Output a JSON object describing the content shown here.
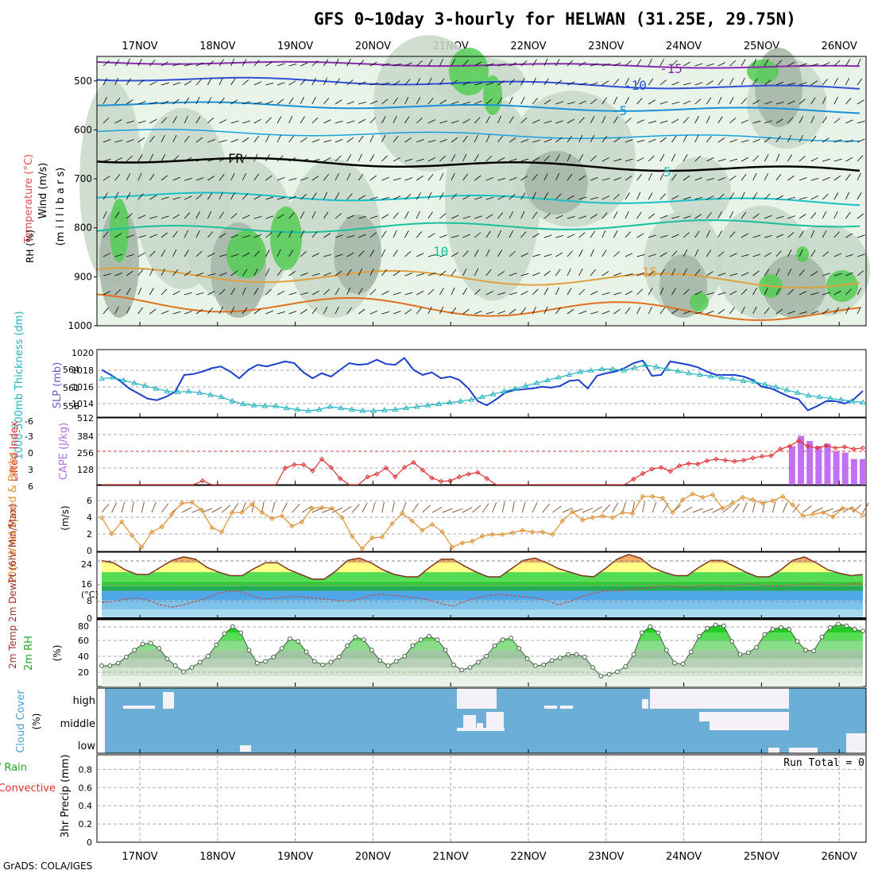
{
  "header": {
    "title": "GFS 0~10day 3-hourly for HELWAN (31.25E, 29.75N)",
    "footer": "GrADS: COLA/IGES"
  },
  "dates": [
    "17NOV",
    "18NOV",
    "19NOV",
    "20NOV",
    "21NOV",
    "22NOV",
    "23NOV",
    "24NOV",
    "25NOV",
    "26NOV"
  ],
  "colors": {
    "rh_light": "#e8f4e8",
    "rh_mid": "#c8d8c8",
    "rh_dark": "#a8b8a8",
    "rh_green": "#55cc55",
    "wind_barb": "#000000",
    "slp": "#1a3fcc",
    "thickness": "#22b3c0",
    "cape": "#c070f0",
    "lifted": "#e03030",
    "wind10": "#e09030",
    "barb10": "#8b5a3c",
    "cloud": "#6baed6",
    "cloud_blank": "#f4f1f8"
  },
  "panels": {
    "upper": {
      "ylabel_wind": "Wind (m/s)",
      "ylabel_temp": "Temperature (°C)",
      "ylabel_rh": "RH (%)",
      "ylabel_mb": "(m i l l i b a r s)",
      "yticks": [
        "500",
        "600",
        "700",
        "800",
        "900",
        "1000"
      ],
      "contour_labels": [
        {
          "text": "-15"
        },
        {
          "text": "-10"
        },
        {
          "text": "-5"
        },
        {
          "text": "FR"
        },
        {
          "text": "5"
        },
        {
          "text": "10"
        },
        {
          "text": "15"
        }
      ]
    },
    "slp": {
      "ylabel_left": "1000-500mb Thickness (dm)",
      "ylabel_right": "SLP (mb)",
      "ticks_left": [
        "564",
        "561",
        "558"
      ],
      "ticks_right": [
        "1020",
        "1018",
        "1016",
        "1014",
        "512"
      ]
    },
    "cape": {
      "ylabel_left": "Lifted Index",
      "ylabel_right": "CAPE (J/kg)",
      "ticks_left": [
        "-6",
        "-3",
        "0",
        "3",
        "6"
      ],
      "ticks_right": [
        "384",
        "256",
        "128"
      ]
    },
    "wind10": {
      "ylabel": "10m Wind Speed & Barbs",
      "unit": "(m/s)",
      "ticks": [
        "6",
        "4",
        "2",
        "0"
      ]
    },
    "temp2m": {
      "ylabel": "2m Temp 2m DewPt (6hr Min/Max)",
      "unit": "(°C)",
      "ticks": [
        "24",
        "16",
        "8",
        "0"
      ]
    },
    "rh2m": {
      "ylabel": "2m RH",
      "unit": "(%)",
      "ticks": [
        "80",
        "60",
        "40",
        "20"
      ]
    },
    "cloud": {
      "ylabel": "Cloud Cover",
      "unit": "(%)",
      "levels": [
        "high",
        "middle",
        "low"
      ]
    },
    "precip": {
      "ylabel_total": "Total / Rain",
      "ylabel_conv": "Convective",
      "ylabel": "3hr Precip (mm)",
      "ticks": [
        "0.8",
        "0.6",
        "0.4",
        "0.2",
        "0"
      ],
      "run_total": "Run Total = 0"
    }
  },
  "chart_data": {
    "type": "line",
    "x_dates": [
      "17NOV",
      "18NOV",
      "19NOV",
      "20NOV",
      "21NOV",
      "22NOV",
      "23NOV",
      "24NOV",
      "25NOV",
      "26NOV"
    ],
    "slp": [
      1018.2,
      1017.6,
      1016.9,
      1016.0,
      1015.4,
      1014.8,
      1014.6,
      1015.0,
      1015.6,
      1017.6,
      1017.7,
      1018.0,
      1018.4,
      1018.6,
      1018.0,
      1017.2,
      1018.2,
      1018.8,
      1018.6,
      1018.9,
      1019.2,
      1019.0,
      1017.9,
      1017.2,
      1017.8,
      1017.4,
      1018.2,
      1019.0,
      1018.8,
      1018.9,
      1019.4,
      1018.9,
      1018.8,
      1019.6,
      1018.2,
      1017.6,
      1017.9,
      1017.2,
      1017.4,
      1017.0,
      1016.0,
      1014.5,
      1014.0,
      1014.7,
      1015.5,
      1015.8,
      1015.9,
      1016.0,
      1016.2,
      1016.1,
      1016.3,
      1016.9,
      1017.0,
      1016.0,
      1017.5,
      1017.8,
      1018.0,
      1018.4,
      1019.0,
      1019.3,
      1017.5,
      1017.6,
      1019.2,
      1019.0,
      1018.8,
      1018.5,
      1018.0,
      1017.6,
      1017.6,
      1017.6,
      1017.4,
      1017.0,
      1016.2,
      1016.0,
      1015.5,
      1015.0,
      1014.7,
      1013.4,
      1013.9,
      1014.5,
      1014.5,
      1014.2,
      1014.7,
      1015.7
    ],
    "thickness": [
      561.8,
      562.0,
      561.6,
      561.2,
      560.8,
      560.4,
      560.0,
      559.9,
      560.0,
      559.8,
      559.5,
      559.2,
      558.6,
      558.2,
      558.0,
      557.9,
      557.9,
      557.6,
      557.4,
      557.2,
      557.4,
      557.8,
      557.6,
      557.4,
      557.2,
      557.2,
      557.3,
      557.4,
      557.6,
      557.8,
      558.0,
      558.2,
      558.4,
      558.6,
      558.8,
      559.2,
      559.6,
      560.0,
      560.4,
      560.8,
      561.2,
      561.6,
      562.0,
      562.4,
      562.8,
      563.0,
      563.2,
      563.2,
      563.0,
      563.4,
      563.8,
      563.5,
      563.2,
      562.9,
      562.6,
      562.4,
      562.2,
      562.0,
      561.8,
      561.5,
      561.4,
      561.0,
      560.6,
      560.2,
      559.8,
      559.4,
      559.2,
      559.0,
      558.8,
      558.6,
      558.4
    ],
    "lifted_index": [
      6,
      6,
      6,
      6,
      6,
      6,
      6,
      6,
      6,
      6,
      6,
      5.3,
      6,
      6,
      6,
      6,
      6,
      6,
      6,
      6,
      3.0,
      2.4,
      2.4,
      3.5,
      1.4,
      2.9,
      4.9,
      6,
      6,
      4.6,
      4.1,
      3.0,
      4.6,
      2.9,
      2.0,
      3.4,
      4.8,
      5.4,
      5.3,
      4.6,
      4.1,
      3.8,
      4.9,
      6,
      6,
      6,
      6,
      6,
      6,
      6,
      6,
      6,
      6,
      6,
      6,
      6,
      6,
      6,
      5.0,
      4.0,
      3.2,
      2.9,
      3.6,
      2.6,
      2.2,
      2.3,
      1.7,
      1.4,
      1.6,
      1.8,
      1.6,
      1.2,
      0.9,
      0.8,
      -0.4,
      -0.9,
      -1.9,
      -0.9,
      -0.6,
      -1.0,
      -0.6,
      -0.8,
      -0.4,
      -0.6
    ],
    "cape": [
      0,
      0,
      0,
      0,
      0,
      0,
      0,
      0,
      0,
      0,
      0,
      0,
      0,
      0,
      0,
      0,
      0,
      0,
      0,
      0,
      0,
      0,
      0,
      0,
      0,
      0,
      0,
      0,
      0,
      0,
      0,
      0,
      0,
      0,
      0,
      0,
      0,
      0,
      0,
      0,
      0,
      0,
      0,
      0,
      0,
      0,
      0,
      0,
      0,
      0,
      0,
      0,
      0,
      0,
      0,
      0,
      0,
      0,
      0,
      0,
      0,
      0,
      0,
      0,
      0,
      0,
      0,
      0,
      0,
      0,
      0,
      0,
      0,
      0,
      0,
      0,
      0,
      0,
      300,
      380,
      340,
      300,
      320,
      260,
      250,
      200,
      200
    ],
    "wind10_speed": [
      4.0,
      2.1,
      3.5,
      1.9,
      0.5,
      2.3,
      2.9,
      4.4,
      5.7,
      5.8,
      4.9,
      2.8,
      2.3,
      4.6,
      4.6,
      5.6,
      4.6,
      3.9,
      4.2,
      3.0,
      3.5,
      5.1,
      5.2,
      5.1,
      4.0,
      1.8,
      0.3,
      1.6,
      1.7,
      3.3,
      4.5,
      3.6,
      2.5,
      3.2,
      2.3,
      0.5,
      1.0,
      1.2,
      1.8,
      2.0,
      2.0,
      2.2,
      2.5,
      2.3,
      2.3,
      2.0,
      3.6,
      4.7,
      3.7,
      4.0,
      4.2,
      4.0,
      4.6,
      4.5,
      6.5,
      6.5,
      6.3,
      4.6,
      6.1,
      6.8,
      6.4,
      6.7,
      5.1,
      5.7,
      6.4,
      6.1,
      5.7,
      6.0,
      6.5,
      5.5,
      4.2,
      4.4,
      4.6,
      4.1,
      5.1,
      5.0,
      4.3
    ],
    "temp2m": [
      25,
      24,
      21,
      19,
      19,
      22,
      25,
      26.5,
      25.5,
      22,
      20,
      18.5,
      18.5,
      21.5,
      24,
      24,
      21,
      19,
      17,
      17,
      20.5,
      25,
      26,
      24,
      21,
      19,
      18,
      18,
      22,
      25.5,
      25.5,
      22.5,
      20,
      18,
      18,
      21.5,
      25,
      26,
      24,
      21.5,
      20,
      18.5,
      18,
      21.5,
      25.5,
      27.5,
      26,
      22,
      20,
      18.5,
      18.5,
      22,
      25,
      25,
      22.5,
      20,
      18,
      18,
      21,
      25,
      26.5,
      24,
      21,
      19.5,
      18.5,
      19
    ],
    "dewpt2m": [
      7,
      7.5,
      8.5,
      9,
      8,
      6,
      5,
      6,
      7.5,
      9,
      11,
      12,
      11.5,
      9.5,
      8.5,
      9,
      9.5,
      9.5,
      9,
      8.5,
      8,
      7.5,
      8.5,
      10,
      10.5,
      10,
      9.5,
      9,
      8,
      6.5,
      5.5,
      7.5,
      9,
      10,
      10.5,
      10,
      9.5,
      9,
      8,
      6,
      7.5,
      9.5,
      11,
      12,
      12,
      12.5,
      13,
      13.5,
      14,
      14,
      13.5,
      14,
      14.5,
      14,
      14,
      15,
      14.5,
      14,
      14,
      14.5,
      15,
      15,
      14.5,
      14.5,
      15,
      15
    ],
    "rh2m": [
      32,
      32,
      35,
      42,
      50,
      57,
      58,
      52,
      40,
      32,
      25,
      30,
      36,
      43,
      56,
      69,
      77,
      70,
      50,
      35,
      37,
      42,
      52,
      63,
      60,
      48,
      37,
      33,
      36,
      42,
      55,
      65,
      62,
      50,
      38,
      32,
      37,
      43,
      55,
      62,
      66,
      62,
      50,
      33,
      27,
      30,
      36,
      43,
      55,
      62,
      64,
      52,
      40,
      32,
      33,
      38,
      41,
      45,
      45,
      42,
      30,
      20,
      22,
      25,
      31,
      45,
      70,
      77,
      70,
      50,
      35,
      34,
      48,
      66,
      75,
      79,
      78,
      60,
      45,
      47,
      53,
      68,
      74,
      76,
      74,
      60,
      50,
      49,
      65,
      76,
      80,
      78,
      74,
      72
    ],
    "cloud_high_segments": [
      [
        "17NOV",
        "+0.25"
      ],
      [
        "17NOV",
        "+0.33"
      ],
      [
        "21NOV",
        "+0.1"
      ],
      [
        "21NOV",
        "+0.5"
      ],
      [
        "23NOV",
        "+0.5"
      ],
      [
        "25NOV",
        "+0.3"
      ]
    ],
    "precip_total": 0
  }
}
